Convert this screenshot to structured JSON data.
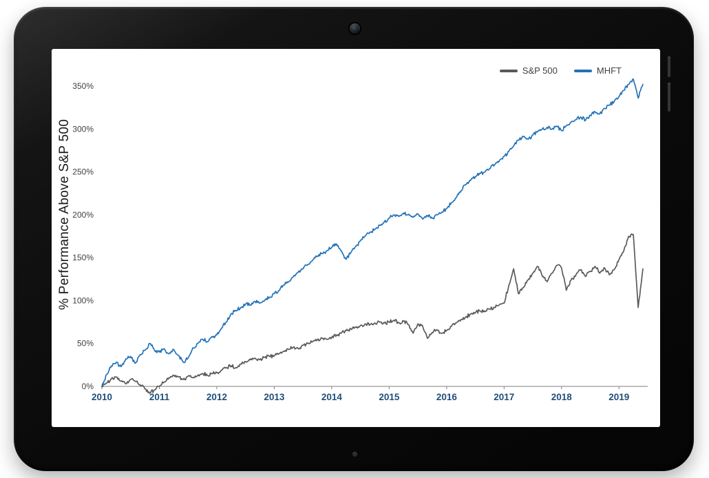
{
  "legend": [
    {
      "label": "S&P 500",
      "color": "#595959"
    },
    {
      "label": "MHFT",
      "color": "#2272B8"
    }
  ],
  "axis": {
    "year_label_color": "#1F4E79",
    "tick_text_color": "#404040",
    "axis_line_color": "#7f7f7f"
  },
  "chart_data": {
    "type": "line",
    "title": "",
    "xlabel": "",
    "ylabel": "% Performance Above S&P 500",
    "grid": false,
    "legend_position": "top-right",
    "x_ticks": [
      "2010",
      "2011",
      "2012",
      "2013",
      "2014",
      "2015",
      "2016",
      "2017",
      "2018",
      "2019"
    ],
    "y_ticks": [
      "0%",
      "50%",
      "100%",
      "150%",
      "200%",
      "250%",
      "300%",
      "350%"
    ],
    "y_tick_values": [
      0,
      50,
      100,
      150,
      200,
      250,
      300,
      350
    ],
    "xlim": [
      2010,
      2019.5
    ],
    "ylim": [
      0,
      350
    ],
    "x_start": 2010.0,
    "x_step_months": 1,
    "series": [
      {
        "name": "S&P 500",
        "color": "#595959",
        "values": [
          0,
          4,
          9,
          11,
          6,
          3,
          8,
          6,
          2,
          -3,
          -8,
          -4,
          0,
          5,
          10,
          13,
          11,
          8,
          12,
          10,
          13,
          15,
          13,
          15,
          16,
          19,
          22,
          24,
          22,
          26,
          29,
          31,
          33,
          31,
          34,
          35,
          36,
          38,
          41,
          43,
          46,
          44,
          48,
          50,
          52,
          54,
          56,
          55,
          57,
          60,
          62,
          65,
          67,
          69,
          71,
          73,
          72,
          74,
          75,
          74,
          75,
          77,
          74,
          76,
          72,
          62,
          73,
          70,
          56,
          63,
          66,
          62,
          65,
          70,
          74,
          78,
          81,
          84,
          86,
          88,
          87,
          90,
          92,
          95,
          97,
          118,
          137,
          108,
          115,
          124,
          132,
          140,
          128,
          122,
          132,
          141,
          138,
          112,
          124,
          130,
          136,
          128,
          134,
          140,
          132,
          138,
          130,
          136,
          148,
          158,
          175,
          177,
          92,
          137
        ]
      },
      {
        "name": "MHFT",
        "color": "#2272B8",
        "values": [
          0,
          14,
          24,
          28,
          23,
          32,
          35,
          27,
          37,
          42,
          50,
          42,
          40,
          44,
          38,
          43,
          36,
          28,
          33,
          45,
          50,
          55,
          52,
          58,
          60,
          68,
          75,
          85,
          88,
          92,
          96,
          95,
          99,
          97,
          100,
          104,
          108,
          112,
          118,
          122,
          128,
          133,
          137,
          142,
          147,
          152,
          155,
          158,
          162,
          166,
          158,
          148,
          156,
          163,
          170,
          175,
          180,
          183,
          188,
          192,
          196,
          200,
          198,
          202,
          200,
          197,
          201,
          195,
          199,
          196,
          200,
          203,
          207,
          214,
          220,
          228,
          235,
          240,
          244,
          248,
          250,
          254,
          258,
          263,
          268,
          274,
          280,
          287,
          291,
          288,
          293,
          297,
          300,
          302,
          300,
          303,
          298,
          304,
          308,
          311,
          314,
          310,
          316,
          320,
          318,
          324,
          328,
          332,
          338,
          345,
          352,
          358,
          336,
          352
        ]
      }
    ]
  }
}
